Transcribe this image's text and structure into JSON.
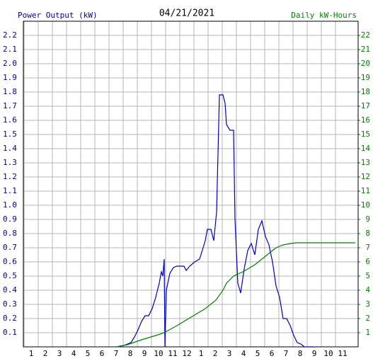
{
  "chart_data": {
    "type": "line",
    "title": "04/21/2021",
    "y_label": "Power Output (kW)",
    "y2_label": "Daily kW-Hours",
    "grid": true,
    "xlim": [
      0.45,
      24.1
    ],
    "xticks": [
      1,
      2,
      3,
      4,
      5,
      6,
      7,
      8,
      9,
      10,
      11,
      12,
      {
        "value": 13,
        "label": "1"
      },
      {
        "value": 14,
        "label": "2"
      },
      {
        "value": 15,
        "label": "3"
      },
      {
        "value": 16,
        "label": "4"
      },
      {
        "value": 17,
        "label": "5"
      },
      {
        "value": 18,
        "label": "6"
      },
      {
        "value": 19,
        "label": "7"
      },
      {
        "value": 20,
        "label": "8"
      },
      {
        "value": 21,
        "label": "9"
      },
      {
        "value": 22,
        "label": "10"
      },
      {
        "value": 23,
        "label": "11"
      }
    ],
    "ylim": [
      0,
      2.3
    ],
    "yticks": [
      0.1,
      0.2,
      0.3,
      0.4,
      0.5,
      0.6,
      0.7,
      0.8,
      0.9,
      {
        "value": 1,
        "label": "1.0"
      },
      1.1,
      1.2,
      1.3,
      1.4,
      1.5,
      1.6,
      1.7,
      1.8,
      1.9,
      {
        "value": 2,
        "label": "2.0"
      },
      2.1,
      2.2
    ],
    "y2lim": [
      0,
      23
    ],
    "y2ticks": [
      1,
      2,
      3,
      4,
      5,
      6,
      7,
      8,
      9,
      10,
      11,
      12,
      13,
      14,
      15,
      16,
      17,
      18,
      19,
      20,
      21,
      22
    ],
    "series": [
      {
        "name": "Power Output (kW)",
        "color": "#0000c0",
        "x": [
          7.0,
          7.55,
          8.05,
          8.3,
          8.55,
          8.8,
          9.05,
          9.3,
          9.55,
          9.8,
          10.05,
          10.2,
          10.3,
          10.4,
          10.45,
          10.55,
          10.8,
          11.05,
          11.3,
          11.8,
          11.95,
          12.2,
          12.55,
          12.9,
          13.3,
          13.45,
          13.7,
          13.9,
          14.1,
          14.3,
          14.55,
          14.7,
          14.8,
          15.05,
          15.3,
          15.4,
          15.6,
          15.8,
          16.05,
          16.3,
          16.55,
          16.8,
          17.05,
          17.3,
          17.55,
          17.8,
          18.05,
          18.3,
          18.55,
          18.8,
          19.05,
          19.3,
          19.55,
          19.8,
          20.05,
          20.3,
          21.05
        ],
        "values": [
          0.0,
          0.01,
          0.03,
          0.07,
          0.12,
          0.18,
          0.22,
          0.22,
          0.27,
          0.35,
          0.45,
          0.53,
          0.5,
          0.62,
          0.0,
          0.4,
          0.52,
          0.56,
          0.57,
          0.57,
          0.54,
          0.57,
          0.6,
          0.62,
          0.75,
          0.83,
          0.83,
          0.75,
          0.95,
          1.78,
          1.78,
          1.72,
          1.57,
          1.53,
          1.53,
          0.9,
          0.45,
          0.38,
          0.55,
          0.68,
          0.73,
          0.65,
          0.83,
          0.89,
          0.78,
          0.72,
          0.6,
          0.43,
          0.35,
          0.2,
          0.2,
          0.15,
          0.08,
          0.03,
          0.02,
          0.0,
          0.0
        ]
      },
      {
        "name": "Daily kW-Hours",
        "color": "#008000",
        "axis": "y2",
        "x": [
          7.05,
          7.8,
          8.8,
          9.8,
          10.4,
          11.3,
          12.3,
          13.3,
          14.05,
          14.55,
          14.8,
          15.3,
          16.05,
          16.8,
          17.3,
          17.8,
          18.3,
          18.8,
          19.3,
          19.8,
          23.9
        ],
        "values": [
          0,
          0.15,
          0.5,
          0.8,
          1.0,
          1.5,
          2.1,
          2.7,
          3.3,
          4.0,
          4.5,
          5.0,
          5.35,
          5.8,
          6.2,
          6.6,
          7.0,
          7.2,
          7.3,
          7.35,
          7.35
        ]
      }
    ]
  }
}
